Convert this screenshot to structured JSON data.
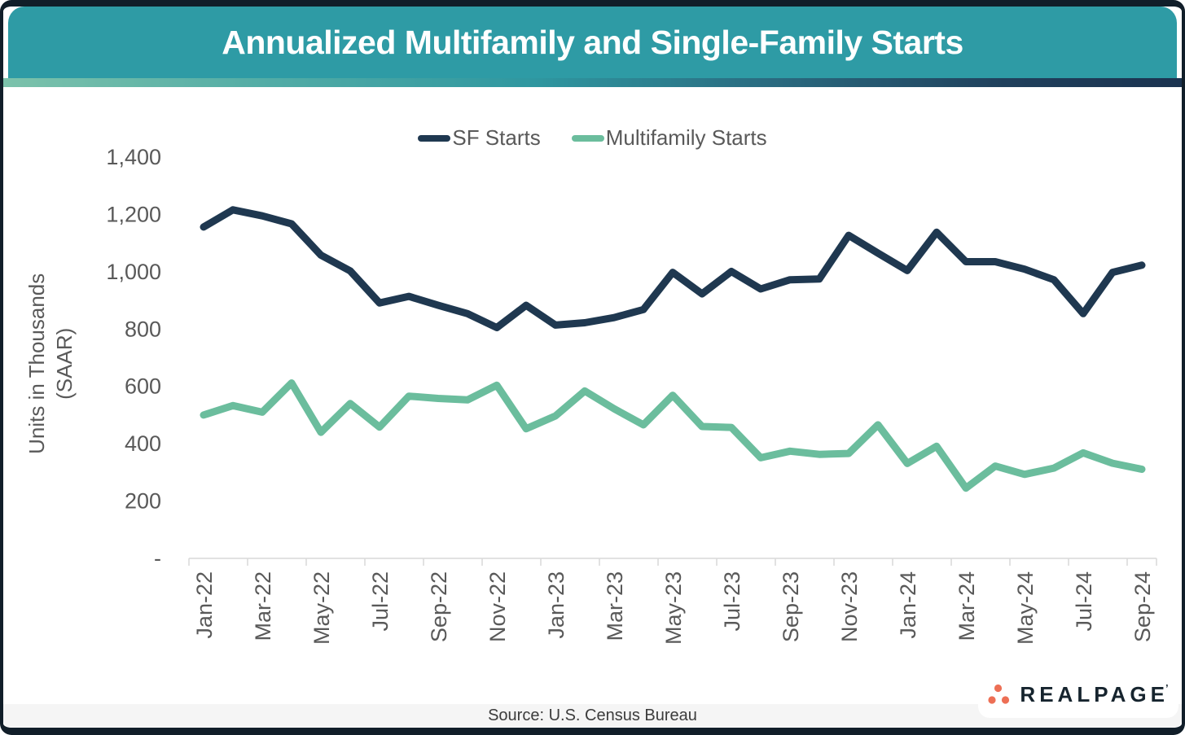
{
  "header": {
    "title": "Annualized Multifamily and Single-Family Starts"
  },
  "y_axis": {
    "title_line1": "Units in Thousands",
    "title_line2": "(SAAR)"
  },
  "footer": {
    "source": "Source: U.S. Census Bureau"
  },
  "logo": {
    "wordmark": "REALPAGE",
    "trademark": "’",
    "dots_color": "#ED6F55",
    "text_color": "#16242E"
  },
  "colors": {
    "header_bg": "#2E9BA5",
    "frame": "#111E29",
    "axis_text": "#595959",
    "axis_line": "#D9D9D9",
    "footer_bg": "#F5F5F5",
    "sf_line": "#1F3850",
    "mf_line": "#6BBD9D"
  },
  "chart_data": {
    "type": "line",
    "title": "Annualized Multifamily and Single-Family Starts",
    "ylabel": "Units in Thousands (SAAR)",
    "ylim": [
      0,
      1400
    ],
    "y_tick_step": 200,
    "y_tick_labels": [
      "-",
      "200",
      "400",
      "600",
      "800",
      "1,000",
      "1,200",
      "1,400"
    ],
    "x_label_every": 2,
    "grid": false,
    "legend_position": "top-center",
    "categories": [
      "Jan-22",
      "Feb-22",
      "Mar-22",
      "Apr-22",
      "May-22",
      "Jun-22",
      "Jul-22",
      "Aug-22",
      "Sep-22",
      "Oct-22",
      "Nov-22",
      "Dec-22",
      "Jan-23",
      "Feb-23",
      "Mar-23",
      "Apr-23",
      "May-23",
      "Jun-23",
      "Jul-23",
      "Aug-23",
      "Sep-23",
      "Oct-23",
      "Nov-23",
      "Dec-23",
      "Jan-24",
      "Feb-24",
      "Mar-24",
      "Apr-24",
      "May-24",
      "Jun-24",
      "Jul-24",
      "Aug-24",
      "Sep-24"
    ],
    "series": [
      {
        "name": "SF Starts",
        "color": "#1F3850",
        "values": [
          1156,
          1216,
          1195,
          1167,
          1058,
          1003,
          891,
          914,
          883,
          854,
          805,
          883,
          814,
          822,
          840,
          868,
          998,
          923,
          1001,
          940,
          972,
          975,
          1127,
          1065,
          1004,
          1138,
          1035,
          1035,
          1009,
          972,
          854,
          998,
          1023
        ]
      },
      {
        "name": "Multifamily Starts",
        "color": "#6BBD9D",
        "values": [
          500,
          533,
          510,
          612,
          440,
          540,
          458,
          566,
          558,
          553,
          604,
          452,
          497,
          584,
          522,
          466,
          569,
          460,
          457,
          351,
          374,
          363,
          366,
          466,
          331,
          391,
          245,
          322,
          293,
          315,
          368,
          332,
          311
        ]
      }
    ]
  }
}
